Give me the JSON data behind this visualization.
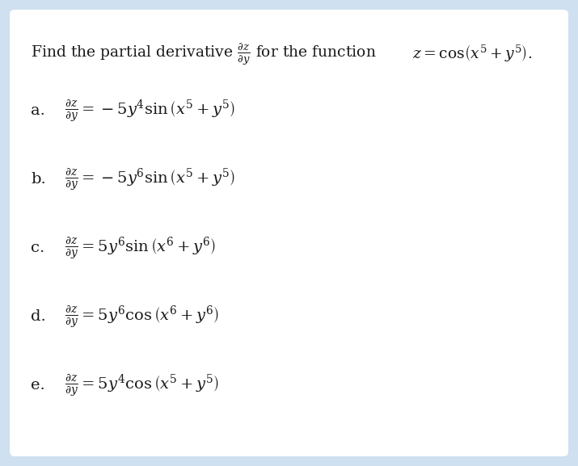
{
  "bg_color": "#cfe0f0",
  "box_color": "#ffffff",
  "text_color": "#1a1a1a",
  "title_fontsize": 13.5,
  "expr_fontsize": 14,
  "label_fontsize": 14,
  "options": [
    {
      "label": "a.",
      "expr": "$\\frac{\\partial z}{\\partial y} = -5y^4 \\sin\\left(x^5 + y^5\\right)$"
    },
    {
      "label": "b.",
      "expr": "$\\frac{\\partial z}{\\partial y} = -5y^6 \\sin\\left(x^5 + y^5\\right)$"
    },
    {
      "label": "c.",
      "expr": "$\\frac{\\partial z}{\\partial y} = 5y^6 \\sin\\left(x^6 + y^6\\right)$"
    },
    {
      "label": "d.",
      "expr": "$\\frac{\\partial z}{\\partial y} = 5y^6 \\cos\\left(x^6 + y^6\\right)$"
    },
    {
      "label": "e.",
      "expr": "$\\frac{\\partial z}{\\partial y} = 5y^4 \\cos\\left(x^5 + y^5\\right)$"
    }
  ]
}
